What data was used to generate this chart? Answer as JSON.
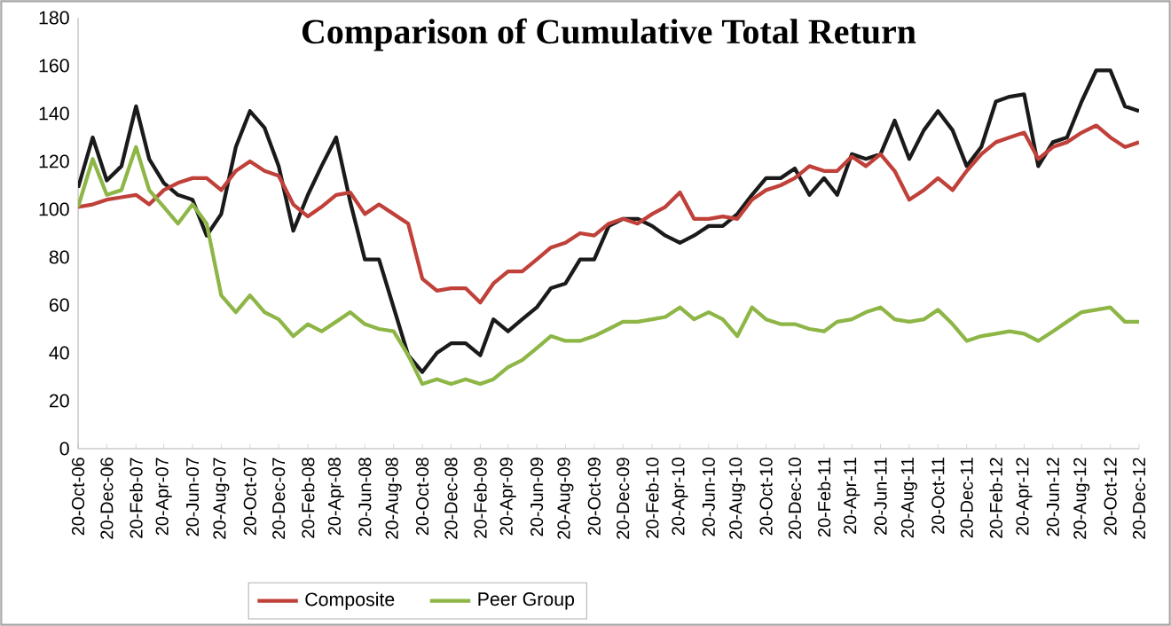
{
  "chart_data": {
    "type": "line",
    "title": "Comparison of Cumulative Total Return",
    "x": [
      "2006-10-20",
      "2006-11-20",
      "2006-12-20",
      "2007-01-20",
      "2007-02-20",
      "2007-03-20",
      "2007-04-20",
      "2007-05-20",
      "2007-06-20",
      "2007-07-20",
      "2007-08-20",
      "2007-09-20",
      "2007-10-20",
      "2007-11-20",
      "2007-12-20",
      "2008-01-20",
      "2008-02-20",
      "2008-03-20",
      "2008-04-20",
      "2008-05-20",
      "2008-06-20",
      "2008-07-20",
      "2008-08-20",
      "2008-09-20",
      "2008-10-20",
      "2008-11-20",
      "2008-12-20",
      "2009-01-20",
      "2009-02-20",
      "2009-03-20",
      "2009-04-20",
      "2009-05-20",
      "2009-06-20",
      "2009-07-20",
      "2009-08-20",
      "2009-09-20",
      "2009-10-20",
      "2009-11-20",
      "2009-12-20",
      "2010-01-20",
      "2010-02-20",
      "2010-03-20",
      "2010-04-20",
      "2010-05-20",
      "2010-06-20",
      "2010-07-20",
      "2010-08-20",
      "2010-09-20",
      "2010-10-20",
      "2010-11-20",
      "2010-12-20",
      "2011-01-20",
      "2011-02-20",
      "2011-03-20",
      "2011-04-20",
      "2011-05-20",
      "2011-06-20",
      "2011-07-20",
      "2011-08-20",
      "2011-09-20",
      "2011-10-20",
      "2011-11-20",
      "2011-12-20",
      "2012-01-20",
      "2012-02-20",
      "2012-03-20",
      "2012-04-20",
      "2012-05-20",
      "2012-06-20",
      "2012-07-20",
      "2012-08-20",
      "2012-09-20",
      "2012-10-20",
      "2012-11-20",
      "2012-12-20"
    ],
    "series": [
      {
        "color": "#1a1a1a",
        "values": [
          109,
          130,
          112,
          118,
          143,
          121,
          111,
          106,
          104,
          89,
          98,
          126,
          141,
          134,
          118,
          91,
          106,
          118,
          130,
          103,
          79,
          79,
          59,
          39,
          32,
          40,
          44,
          44,
          39,
          54,
          49,
          54,
          59,
          67,
          69,
          79,
          79,
          93,
          96,
          96,
          93,
          89,
          86,
          89,
          93,
          93,
          98,
          106,
          113,
          113,
          117,
          106,
          113,
          106,
          123,
          121,
          123,
          137,
          121,
          133,
          141,
          133,
          118,
          126,
          145,
          147,
          148,
          118,
          128,
          130,
          145,
          158,
          158,
          143,
          141
        ]
      },
      {
        "name": "Composite",
        "color": "#c0403a",
        "values": [
          101,
          102,
          104,
          105,
          106,
          102,
          108,
          111,
          113,
          113,
          108,
          116,
          120,
          116,
          114,
          102,
          97,
          101,
          106,
          107,
          98,
          102,
          98,
          94,
          71,
          66,
          67,
          67,
          61,
          69,
          74,
          74,
          79,
          84,
          86,
          90,
          89,
          94,
          96,
          94,
          98,
          101,
          107,
          96,
          96,
          97,
          96,
          104,
          108,
          110,
          113,
          118,
          116,
          116,
          122,
          118,
          123,
          116,
          104,
          108,
          113,
          108,
          116,
          123,
          128,
          130,
          132,
          121,
          126,
          128,
          132,
          135,
          130,
          126,
          128
        ]
      },
      {
        "name": "Peer Group",
        "color": "#8db646",
        "values": [
          101,
          121,
          106,
          108,
          126,
          108,
          101,
          94,
          102,
          94,
          64,
          57,
          64,
          57,
          54,
          47,
          52,
          49,
          53,
          57,
          52,
          50,
          49,
          39,
          27,
          29,
          27,
          29,
          27,
          29,
          34,
          37,
          42,
          47,
          45,
          45,
          47,
          50,
          53,
          53,
          54,
          55,
          59,
          54,
          57,
          54,
          47,
          59,
          54,
          52,
          52,
          50,
          49,
          53,
          54,
          57,
          59,
          54,
          53,
          54,
          58,
          52,
          45,
          47,
          48,
          49,
          48,
          45,
          49,
          53,
          57,
          58,
          59,
          53,
          53
        ]
      }
    ],
    "xlim": [
      "2006-10-20",
      "2012-12-20"
    ],
    "xticks": [
      {
        "value": "2006-10-20",
        "label": "20-Oct-06"
      },
      {
        "value": "2006-12-20",
        "label": "20-Dec-06"
      },
      {
        "value": "2007-02-20",
        "label": "20-Feb-07"
      },
      {
        "value": "2007-04-20",
        "label": "20-Apr-07"
      },
      {
        "value": "2007-06-20",
        "label": "20-Jun-07"
      },
      {
        "value": "2007-08-20",
        "label": "20-Aug-07"
      },
      {
        "value": "2007-10-20",
        "label": "20-Oct-07"
      },
      {
        "value": "2007-12-20",
        "label": "20-Dec-07"
      },
      {
        "value": "2008-02-20",
        "label": "20-Feb-08"
      },
      {
        "value": "2008-04-20",
        "label": "20-Apr-08"
      },
      {
        "value": "2008-06-20",
        "label": "20-Jun-08"
      },
      {
        "value": "2008-08-20",
        "label": "20-Aug-08"
      },
      {
        "value": "2008-10-20",
        "label": "20-Oct-08"
      },
      {
        "value": "2008-12-20",
        "label": "20-Dec-08"
      },
      {
        "value": "2009-02-20",
        "label": "20-Feb-09"
      },
      {
        "value": "2009-04-20",
        "label": "20-Apr-09"
      },
      {
        "value": "2009-06-20",
        "label": "20-Jun-09"
      },
      {
        "value": "2009-08-20",
        "label": "20-Aug-09"
      },
      {
        "value": "2009-10-20",
        "label": "20-Oct-09"
      },
      {
        "value": "2009-12-20",
        "label": "20-Dec-09"
      },
      {
        "value": "2010-02-20",
        "label": "20-Feb-10"
      },
      {
        "value": "2010-04-20",
        "label": "20-Apr-10"
      },
      {
        "value": "2010-06-20",
        "label": "20-Jun-10"
      },
      {
        "value": "2010-08-20",
        "label": "20-Aug-10"
      },
      {
        "value": "2010-10-20",
        "label": "20-Oct-10"
      },
      {
        "value": "2010-12-20",
        "label": "20-Dec-10"
      },
      {
        "value": "2011-02-20",
        "label": "20-Feb-11"
      },
      {
        "value": "2011-04-20",
        "label": "20-Apr-11"
      },
      {
        "value": "2011-06-20",
        "label": "20-Jun-11"
      },
      {
        "value": "2011-08-20",
        "label": "20-Aug-11"
      },
      {
        "value": "2011-10-20",
        "label": "20-Oct-11"
      },
      {
        "value": "2011-12-20",
        "label": "20-Dec-11"
      },
      {
        "value": "2012-02-20",
        "label": "20-Feb-12"
      },
      {
        "value": "2012-04-20",
        "label": "20-Apr-12"
      },
      {
        "value": "2012-06-20",
        "label": "20-Jun-12"
      },
      {
        "value": "2012-08-20",
        "label": "20-Aug-12"
      },
      {
        "value": "2012-10-20",
        "label": "20-Oct-12"
      },
      {
        "value": "2012-12-20",
        "label": "20-Dec-12"
      }
    ],
    "ylim": [
      0,
      180
    ],
    "yticks": [
      0,
      20,
      40,
      60,
      80,
      100,
      120,
      140,
      160,
      180
    ],
    "legend": "bottom",
    "grid": false,
    "marker": "none",
    "line_style": "solid"
  }
}
